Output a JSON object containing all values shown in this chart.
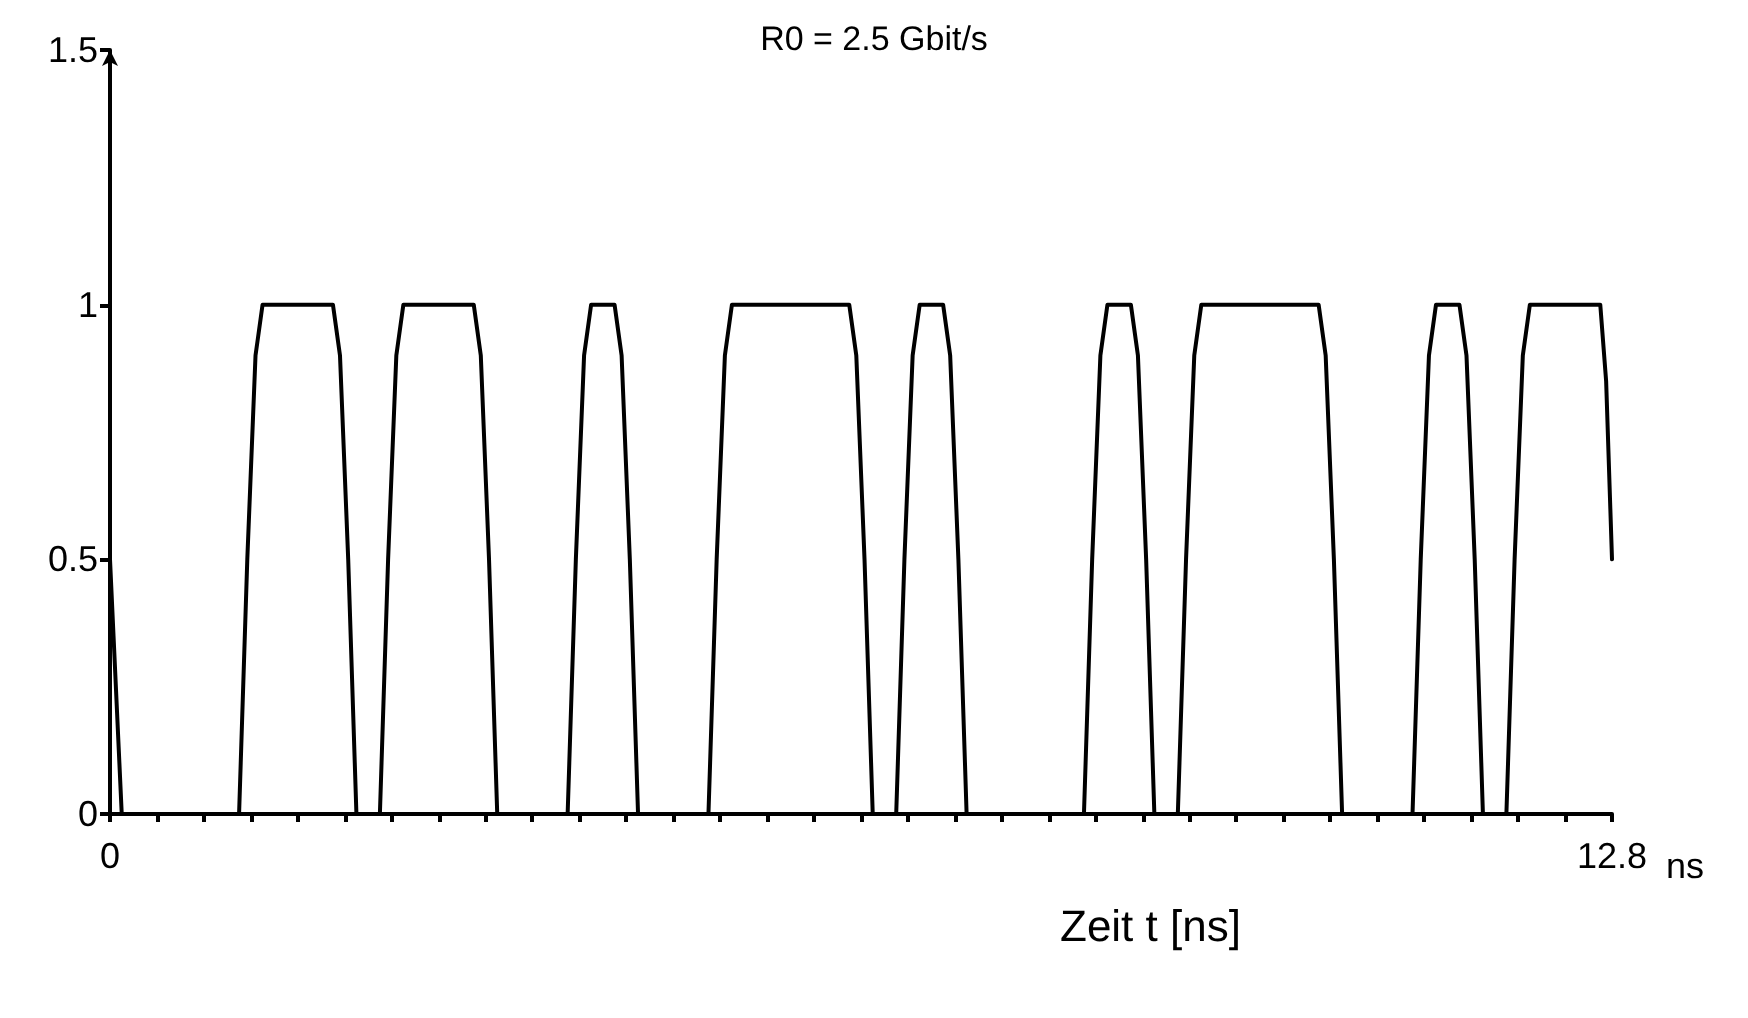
{
  "chart_data": {
    "type": "line",
    "title": "R0 = 2.5 Gbit/s",
    "xlabel": "Zeit t [ns]",
    "annotations": [
      "ns"
    ],
    "x": [
      0,
      0.03,
      0.1,
      1.1,
      1.17,
      1.24,
      1.3,
      1.9,
      1.96,
      2.03,
      2.1,
      2.3,
      2.37,
      2.44,
      2.5,
      3.1,
      3.16,
      3.23,
      3.3,
      3.9,
      3.97,
      4.04,
      4.1,
      4.3,
      4.36,
      4.43,
      4.5,
      5.1,
      5.17,
      5.24,
      5.3,
      6.3,
      6.36,
      6.43,
      6.5,
      6.7,
      6.77,
      6.84,
      6.9,
      7.1,
      7.16,
      7.23,
      7.3,
      8.3,
      8.37,
      8.44,
      8.5,
      8.7,
      8.76,
      8.83,
      8.9,
      9.1,
      9.17,
      9.24,
      9.3,
      10.3,
      10.36,
      10.43,
      10.5,
      11.1,
      11.17,
      11.24,
      11.3,
      11.5,
      11.56,
      11.63,
      11.7,
      11.9,
      11.97,
      12.04,
      12.1,
      12.7,
      12.75,
      12.8
    ],
    "series": [
      {
        "color": "#000000",
        "values": [
          0.5,
          0.35,
          0,
          0,
          0.5,
          0.9,
          1,
          1,
          0.9,
          0.5,
          0,
          0,
          0.5,
          0.9,
          1,
          1,
          0.9,
          0.5,
          0,
          0,
          0.5,
          0.9,
          1,
          1,
          0.9,
          0.5,
          0,
          0,
          0.5,
          0.9,
          1,
          1,
          0.9,
          0.5,
          0,
          0,
          0.5,
          0.9,
          1,
          1,
          0.9,
          0.5,
          0,
          0,
          0.5,
          0.9,
          1,
          1,
          0.9,
          0.5,
          0,
          0,
          0.5,
          0.9,
          1,
          1,
          0.9,
          0.5,
          0,
          0,
          0.5,
          0.9,
          1,
          1,
          0.9,
          0.5,
          0,
          0,
          0.5,
          0.9,
          1,
          1,
          0.85,
          0.5
        ]
      }
    ],
    "xlim": [
      0,
      12.8
    ],
    "xticks": [
      0,
      {
        "value": 0.4,
        "label": null
      },
      {
        "value": 0.8,
        "label": null
      },
      {
        "value": 1.2,
        "label": null
      },
      {
        "value": 1.6,
        "label": null
      },
      {
        "value": 2,
        "label": null
      },
      {
        "value": 2.4,
        "label": null
      },
      {
        "value": 2.8,
        "label": null
      },
      {
        "value": 3.2,
        "label": null
      },
      {
        "value": 3.6,
        "label": null
      },
      {
        "value": 4,
        "label": null
      },
      {
        "value": 4.4,
        "label": null
      },
      {
        "value": 4.8,
        "label": null
      },
      {
        "value": 5.2,
        "label": null
      },
      {
        "value": 5.6,
        "label": null
      },
      {
        "value": 6,
        "label": null
      },
      {
        "value": 6.4,
        "label": null
      },
      {
        "value": 6.8,
        "label": null
      },
      {
        "value": 7.2,
        "label": null
      },
      {
        "value": 7.6,
        "label": null
      },
      {
        "value": 8,
        "label": null
      },
      {
        "value": 8.4,
        "label": null
      },
      {
        "value": 8.8,
        "label": null
      },
      {
        "value": 9.2,
        "label": null
      },
      {
        "value": 9.6,
        "label": null
      },
      {
        "value": 10,
        "label": null
      },
      {
        "value": 10.4,
        "label": null
      },
      {
        "value": 10.8,
        "label": null
      },
      {
        "value": 11.2,
        "label": null
      },
      {
        "value": 11.6,
        "label": null
      },
      {
        "value": 12,
        "label": null
      },
      {
        "value": 12.4,
        "label": null
      },
      12.8
    ],
    "ylim": [
      0,
      1.5
    ],
    "yticks": [
      0,
      0.5,
      1,
      1.5
    ],
    "grid": false,
    "marker": "none",
    "line_style": "solid"
  }
}
